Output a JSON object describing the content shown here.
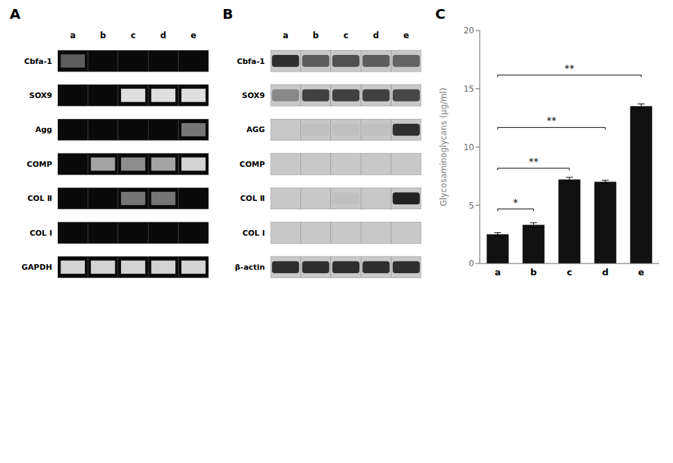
{
  "chart_data": [
    {
      "type": "heatmap",
      "title": "A",
      "categories": [
        "a",
        "b",
        "c",
        "d",
        "e"
      ],
      "rows": [
        "Cbfa-1",
        "SOX9",
        "Agg",
        "COMP",
        "COL Ⅱ",
        "COL I",
        "GAPDH"
      ],
      "cells": [
        [
          0.4,
          0,
          0,
          0,
          0
        ],
        [
          0,
          0,
          0.95,
          0.95,
          0.95
        ],
        [
          0,
          0,
          0,
          0,
          0.5
        ],
        [
          0,
          0.7,
          0.6,
          0.7,
          0.9
        ],
        [
          0,
          0,
          0.5,
          0.5,
          0
        ],
        [
          0,
          0,
          0,
          0,
          0
        ],
        [
          0.9,
          0.9,
          0.9,
          0.9,
          0.9
        ]
      ]
    },
    {
      "type": "heatmap",
      "title": "B",
      "categories": [
        "a",
        "b",
        "c",
        "d",
        "e"
      ],
      "rows": [
        "Cbfa-1",
        "SOX9",
        "AGG",
        "COMP",
        "COL Ⅱ",
        "COL I",
        "β-actin"
      ],
      "cells": [
        [
          0.85,
          0.6,
          0.65,
          0.6,
          0.55
        ],
        [
          0.35,
          0.75,
          0.75,
          0.75,
          0.72
        ],
        [
          0.0,
          0.05,
          0.05,
          0.05,
          0.85
        ],
        [
          0.0,
          0.0,
          0.0,
          0.0,
          0.0
        ],
        [
          0.0,
          0.0,
          0.05,
          0.0,
          0.92
        ],
        [
          0.0,
          0.0,
          0.0,
          0.0,
          0.0
        ],
        [
          0.85,
          0.85,
          0.85,
          0.85,
          0.85
        ]
      ]
    },
    {
      "type": "bar",
      "title": "C",
      "categories": [
        "a",
        "b",
        "c",
        "d",
        "e"
      ],
      "values": [
        2.5,
        3.3,
        7.2,
        7.0,
        13.5
      ],
      "errors": [
        0.15,
        0.2,
        0.2,
        0.15,
        0.2
      ],
      "color": "#111111",
      "ylabel": "Glycosaminoglycans (μg/ml)",
      "ylim": [
        0,
        20
      ],
      "yticks": [
        0,
        5,
        10,
        15,
        20
      ],
      "grid": false,
      "annotations": [
        {
          "x1": 0,
          "x2": 1,
          "y": 4.5,
          "label": "*"
        },
        {
          "x1": 0,
          "x2": 2,
          "y": 8.0,
          "label": "**"
        },
        {
          "x1": 0,
          "x2": 3,
          "y": 11.5,
          "label": "**"
        },
        {
          "x1": 0,
          "x2": 4,
          "y": 16.0,
          "label": "**"
        }
      ]
    }
  ]
}
